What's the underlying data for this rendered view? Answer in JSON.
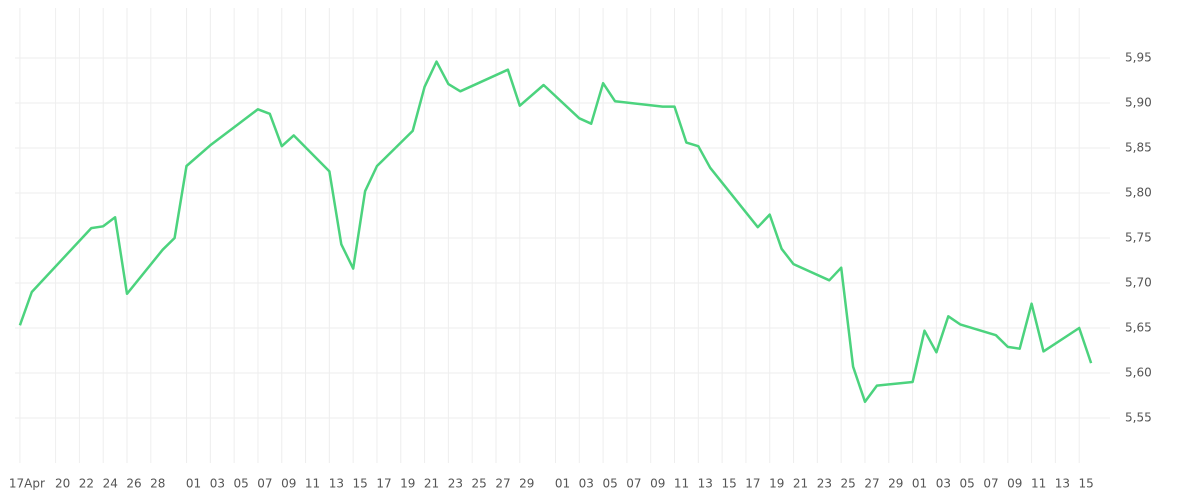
{
  "chart_data": {
    "type": "line",
    "x": [
      "04-17",
      "04-18",
      "04-23",
      "04-24",
      "04-25",
      "04-26",
      "04-29",
      "04-30",
      "05-01",
      "05-03",
      "05-07",
      "05-08",
      "05-09",
      "05-10",
      "05-13",
      "05-14",
      "05-15",
      "05-16",
      "05-17",
      "05-20",
      "05-21",
      "05-22",
      "05-23",
      "05-24",
      "05-28",
      "05-29",
      "05-31",
      "06-03",
      "06-04",
      "06-05",
      "06-06",
      "06-10",
      "06-11",
      "06-12",
      "06-13",
      "06-14",
      "06-18",
      "06-19",
      "06-20",
      "06-21",
      "06-24",
      "06-25",
      "06-26",
      "06-27",
      "06-28",
      "07-01",
      "07-02",
      "07-03",
      "07-04",
      "07-05",
      "07-08",
      "07-09",
      "07-10",
      "07-11",
      "07-12",
      "07-15",
      "07-16"
    ],
    "series": [
      {
        "color": "#4cd37e",
        "values": [
          5.653,
          5.69,
          5.761,
          5.763,
          5.773,
          5.688,
          5.737,
          5.75,
          5.83,
          5.853,
          5.893,
          5.888,
          5.852,
          5.864,
          5.824,
          5.743,
          5.716,
          5.802,
          5.83,
          5.869,
          5.918,
          5.946,
          5.921,
          5.913,
          5.937,
          5.897,
          5.92,
          5.883,
          5.877,
          5.922,
          5.902,
          5.896,
          5.896,
          5.856,
          5.852,
          5.828,
          5.762,
          5.776,
          5.738,
          5.721,
          5.703,
          5.717,
          5.607,
          5.568,
          5.586,
          5.59,
          5.647,
          5.623,
          5.663,
          5.654,
          5.642,
          5.629,
          5.627,
          5.677,
          5.624,
          5.65,
          5.611
        ]
      }
    ],
    "xlim": [
      "04-16",
      "07-17"
    ],
    "xticks": [
      {
        "value": "04-17",
        "label": "17Apr"
      },
      {
        "value": "04-20",
        "label": "20"
      },
      {
        "value": "04-22",
        "label": "22"
      },
      {
        "value": "04-24",
        "label": "24"
      },
      {
        "value": "04-26",
        "label": "26"
      },
      {
        "value": "04-28",
        "label": "28"
      },
      {
        "value": "05-01",
        "label": "01"
      },
      {
        "value": "05-03",
        "label": "03"
      },
      {
        "value": "05-05",
        "label": "05"
      },
      {
        "value": "05-07",
        "label": "07"
      },
      {
        "value": "05-09",
        "label": "09"
      },
      {
        "value": "05-11",
        "label": "11"
      },
      {
        "value": "05-13",
        "label": "13"
      },
      {
        "value": "05-15",
        "label": "15"
      },
      {
        "value": "05-17",
        "label": "17"
      },
      {
        "value": "05-19",
        "label": "19"
      },
      {
        "value": "05-21",
        "label": "21"
      },
      {
        "value": "05-23",
        "label": "23"
      },
      {
        "value": "05-25",
        "label": "25"
      },
      {
        "value": "05-27",
        "label": "27"
      },
      {
        "value": "05-29",
        "label": "29"
      },
      {
        "value": "06-01",
        "label": "01"
      },
      {
        "value": "06-03",
        "label": "03"
      },
      {
        "value": "06-05",
        "label": "05"
      },
      {
        "value": "06-07",
        "label": "07"
      },
      {
        "value": "06-09",
        "label": "09"
      },
      {
        "value": "06-11",
        "label": "11"
      },
      {
        "value": "06-13",
        "label": "13"
      },
      {
        "value": "06-15",
        "label": "15"
      },
      {
        "value": "06-17",
        "label": "17"
      },
      {
        "value": "06-19",
        "label": "19"
      },
      {
        "value": "06-21",
        "label": "21"
      },
      {
        "value": "06-23",
        "label": "23"
      },
      {
        "value": "06-25",
        "label": "25"
      },
      {
        "value": "06-27",
        "label": "27"
      },
      {
        "value": "06-29",
        "label": "29"
      },
      {
        "value": "07-01",
        "label": "01"
      },
      {
        "value": "07-03",
        "label": "03"
      },
      {
        "value": "07-05",
        "label": "05"
      },
      {
        "value": "07-07",
        "label": "07"
      },
      {
        "value": "07-09",
        "label": "09"
      },
      {
        "value": "07-11",
        "label": "11"
      },
      {
        "value": "07-13",
        "label": "13"
      },
      {
        "value": "07-15",
        "label": "15"
      }
    ],
    "ylim": [
      5.5,
      6.0
    ],
    "yticks": [
      {
        "value": 5.55,
        "label": "5,55"
      },
      {
        "value": 5.6,
        "label": "5,60"
      },
      {
        "value": 5.65,
        "label": "5,65"
      },
      {
        "value": 5.7,
        "label": "5,70"
      },
      {
        "value": 5.75,
        "label": "5,75"
      },
      {
        "value": 5.8,
        "label": "5,80"
      },
      {
        "value": 5.85,
        "label": "5,85"
      },
      {
        "value": 5.9,
        "label": "5,90"
      },
      {
        "value": 5.95,
        "label": "5,95"
      }
    ],
    "grid": true
  }
}
